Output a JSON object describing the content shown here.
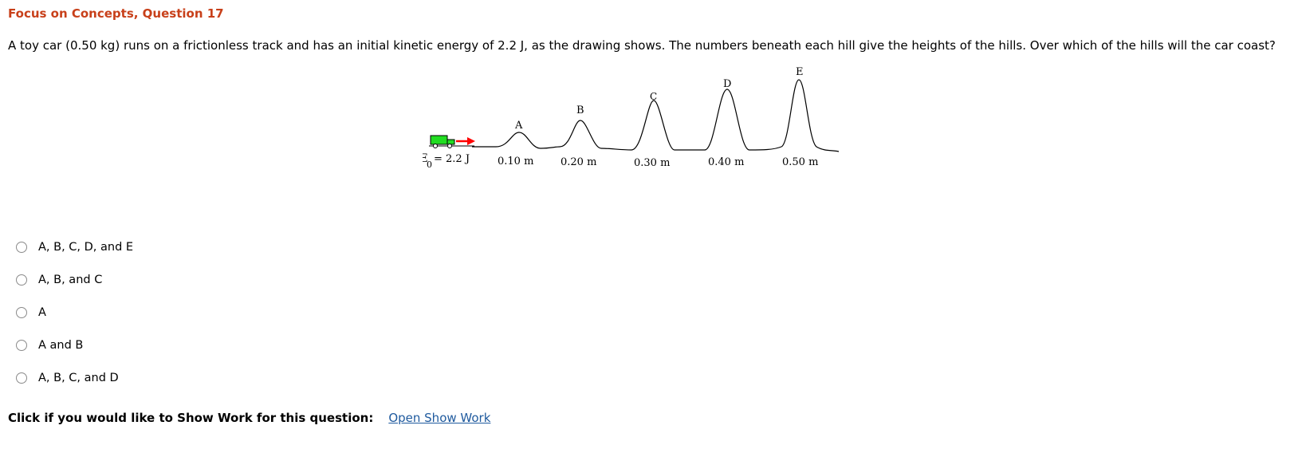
{
  "header": {
    "title": "Focus on Concepts, Question 17"
  },
  "question": {
    "text": "A toy car (0.50 kg) runs on a frictionless track and has an initial kinetic energy of 2.2 J, as the drawing shows. The numbers beneath each hill give the heights of the hills. Over which of the hills will the car coast?"
  },
  "figure": {
    "ke_symbol": "KE",
    "ke_subscript": "0",
    "ke_value": "= 2.2 J",
    "hills": [
      {
        "label": "A",
        "height": "0.10 m"
      },
      {
        "label": "B",
        "height": "0.20 m"
      },
      {
        "label": "C",
        "height": "0.30 m"
      },
      {
        "label": "D",
        "height": "0.40 m"
      },
      {
        "label": "E",
        "height": "0.50 m"
      }
    ],
    "colors": {
      "car": "#22dd22",
      "arrow": "#ff0000",
      "track": "#000000"
    }
  },
  "options": [
    {
      "label": "A, B, C, D, and E"
    },
    {
      "label": "A, B, and C"
    },
    {
      "label": "A"
    },
    {
      "label": "A and B"
    },
    {
      "label": "A, B, C, and D"
    }
  ],
  "show_work": {
    "prompt": "Click if you would like to Show Work for this question:",
    "link": "Open Show Work"
  }
}
